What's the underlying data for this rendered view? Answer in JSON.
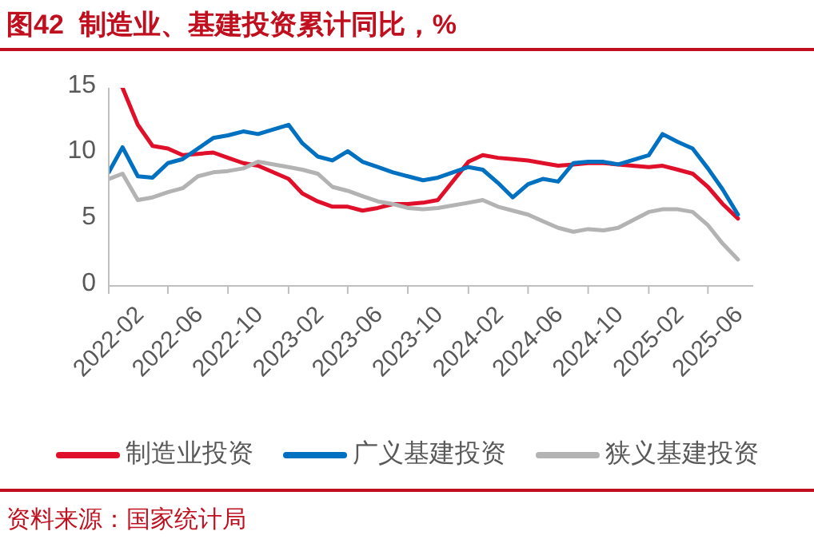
{
  "chart_data": {
    "type": "line",
    "title": "图42  制造业、基建投资累计同比，%",
    "annotations": [
      "资料来源：国家统计局"
    ],
    "x": [
      "2022-02",
      "2022-03",
      "2022-04",
      "2022-05",
      "2022-06",
      "2022-07",
      "2022-08",
      "2022-09",
      "2022-10",
      "2022-11",
      "2022-12",
      "2023-02",
      "2023-03",
      "2023-04",
      "2023-05",
      "2023-06",
      "2023-07",
      "2023-08",
      "2023-09",
      "2023-10",
      "2023-11",
      "2023-12",
      "2024-02",
      "2024-03",
      "2024-04",
      "2024-05",
      "2024-06",
      "2024-07",
      "2024-08",
      "2024-09",
      "2024-10",
      "2024-11",
      "2024-12",
      "2025-02",
      "2025-03",
      "2025-04",
      "2025-05",
      "2025-06",
      "2025-07",
      "2025-08"
    ],
    "series": [
      {
        "name": "制造业投资",
        "color": "#e0102a",
        "values": [
          null,
          15,
          12.2,
          10.6,
          10.4,
          9.9,
          10.0,
          10.1,
          9.7,
          9.3,
          9.1,
          8.1,
          7.0,
          6.4,
          6.0,
          6.0,
          5.7,
          5.9,
          6.2,
          6.2,
          6.3,
          6.5,
          9.4,
          9.9,
          9.7,
          9.6,
          9.5,
          9.3,
          9.1,
          9.2,
          9.3,
          9.3,
          9.2,
          9.0,
          9.1,
          8.8,
          8.5,
          7.5,
          6.2,
          5.1
        ]
      },
      {
        "name": "广义基建投资",
        "color": "#0070c0",
        "values": [
          8.6,
          10.5,
          8.3,
          8.2,
          9.3,
          9.6,
          10.4,
          11.2,
          11.4,
          11.7,
          11.5,
          12.2,
          10.8,
          9.8,
          9.5,
          10.2,
          9.4,
          9.0,
          8.6,
          8.3,
          8.0,
          8.2,
          9.0,
          8.8,
          7.8,
          6.7,
          7.7,
          8.1,
          7.9,
          9.3,
          9.4,
          9.4,
          9.2,
          9.9,
          11.5,
          10.9,
          10.4,
          8.9,
          7.3,
          5.4
        ]
      },
      {
        "name": "狭义基建投资",
        "color": "#b3b3b3",
        "values": [
          8.1,
          8.5,
          6.5,
          6.7,
          7.1,
          7.4,
          8.3,
          8.6,
          8.7,
          8.9,
          9.4,
          9.0,
          8.8,
          8.5,
          7.5,
          7.2,
          6.8,
          6.4,
          6.2,
          5.9,
          5.8,
          5.9,
          6.3,
          6.5,
          6.0,
          5.7,
          5.4,
          4.9,
          4.4,
          4.1,
          4.3,
          4.2,
          4.4,
          5.6,
          5.8,
          5.8,
          5.6,
          4.6,
          3.2,
          2.0
        ]
      }
    ],
    "xlim": [
      "2022-02",
      "2025-09"
    ],
    "xticks": [
      "2022-02",
      "2022-06",
      "2022-10",
      "2023-02",
      "2023-06",
      "2023-10",
      "2024-02",
      "2024-06",
      "2024-10",
      "2025-02",
      "2025-06"
    ],
    "ylim": [
      0,
      15
    ],
    "yticks": [
      0,
      5,
      10,
      15
    ],
    "legend": "bottom",
    "marker": "none",
    "line_style": "solid"
  }
}
